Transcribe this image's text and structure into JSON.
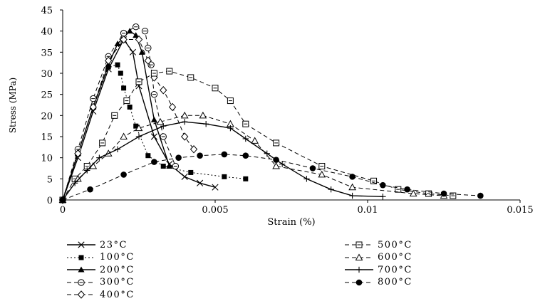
{
  "chart_data": {
    "type": "line",
    "title": "",
    "xlabel": "Strain (%)",
    "ylabel": "Stress (MPa)",
    "xlim": [
      0,
      0.015
    ],
    "ylim": [
      0,
      45
    ],
    "x_ticks": [
      "0",
      "0.005",
      "0.01",
      "0.015"
    ],
    "y_ticks": [
      "0",
      "5",
      "10",
      "15",
      "20",
      "25",
      "30",
      "35",
      "40",
      "45"
    ],
    "grid": false,
    "legend_position": "bottom",
    "series": [
      {
        "name": "23°C",
        "marker": "x",
        "line": "solid",
        "x": [
          0,
          0.0005,
          0.001,
          0.0015,
          0.002,
          0.0023,
          0.0025,
          0.003,
          0.0035,
          0.004,
          0.0045,
          0.005
        ],
        "y": [
          0,
          10,
          21,
          31,
          38,
          35,
          27,
          15,
          8.5,
          5.5,
          4,
          3
        ]
      },
      {
        "name": "100°C",
        "marker": "filled-square",
        "line": "dotted",
        "x": [
          0,
          0.0005,
          0.001,
          0.0015,
          0.0018,
          0.0019,
          0.002,
          0.0022,
          0.0024,
          0.0028,
          0.0033,
          0.0042,
          0.0053,
          0.006
        ],
        "y": [
          0,
          11,
          22,
          31.5,
          32,
          30,
          26.5,
          22,
          17.5,
          10.5,
          8,
          6.5,
          5.5,
          5
        ]
      },
      {
        "name": "200°C",
        "marker": "filled-triangle",
        "line": "solid",
        "x": [
          0,
          0.0005,
          0.001,
          0.0015,
          0.0018,
          0.0022,
          0.0024,
          0.0026,
          0.003,
          0.0035
        ],
        "y": [
          0,
          11,
          22,
          32,
          37,
          40,
          39,
          35,
          19,
          8
        ]
      },
      {
        "name": "300°C",
        "marker": "circle-dash",
        "line": "dashed",
        "x": [
          0,
          0.0005,
          0.001,
          0.0015,
          0.002,
          0.0024,
          0.0027,
          0.0028,
          0.0029,
          0.003,
          0.0033,
          0.0037
        ],
        "y": [
          0,
          12,
          24,
          34,
          39.5,
          41,
          40,
          36,
          32,
          25,
          15,
          8
        ]
      },
      {
        "name": "400°C",
        "marker": "diamond",
        "line": "dashed",
        "x": [
          0,
          0.0005,
          0.001,
          0.0015,
          0.002,
          0.0025,
          0.0028,
          0.003,
          0.0033,
          0.0036,
          0.004,
          0.0043
        ],
        "y": [
          0,
          11,
          22,
          33,
          38,
          38,
          33,
          29,
          26,
          22,
          15,
          12
        ]
      },
      {
        "name": "500°C",
        "marker": "square-dash",
        "line": "dashed",
        "x": [
          0,
          0.0004,
          0.0008,
          0.0013,
          0.0017,
          0.0021,
          0.0025,
          0.003,
          0.0035,
          0.0042,
          0.005,
          0.0055,
          0.006,
          0.007,
          0.0085,
          0.0102,
          0.011,
          0.012,
          0.0128
        ],
        "y": [
          0,
          5,
          8,
          13.5,
          20,
          23.5,
          28,
          30,
          30.5,
          29,
          26.5,
          23.5,
          18,
          13.5,
          8,
          4.5,
          2.5,
          1.5,
          1
        ]
      },
      {
        "name": "600°C",
        "marker": "triangle",
        "line": "dashed",
        "x": [
          0,
          0.0005,
          0.001,
          0.0015,
          0.002,
          0.0025,
          0.0032,
          0.004,
          0.0046,
          0.0055,
          0.0063,
          0.007,
          0.0085,
          0.0095,
          0.0115,
          0.0125
        ],
        "y": [
          0,
          5,
          8,
          11,
          15,
          17,
          18.5,
          20,
          20,
          18,
          14,
          8,
          6,
          3,
          1.5,
          1
        ]
      },
      {
        "name": "700°C",
        "marker": "plus",
        "line": "solid",
        "x": [
          0,
          0.0004,
          0.0008,
          0.0012,
          0.0018,
          0.0025,
          0.0033,
          0.004,
          0.0047,
          0.0055,
          0.006,
          0.0067,
          0.0072,
          0.008,
          0.0088,
          0.0095,
          0.0105
        ],
        "y": [
          0,
          4,
          7,
          10,
          12,
          15,
          17.5,
          18.5,
          18,
          17,
          14.5,
          11,
          8.5,
          5,
          2.5,
          1,
          0.8
        ]
      },
      {
        "name": "800°C",
        "marker": "filled-circle",
        "line": "dashed",
        "x": [
          0,
          0.0009,
          0.002,
          0.003,
          0.0038,
          0.0045,
          0.0053,
          0.006,
          0.007,
          0.0082,
          0.0095,
          0.0105,
          0.0113,
          0.0125,
          0.0137
        ],
        "y": [
          0,
          2.5,
          6,
          9,
          10,
          10.5,
          10.8,
          10.5,
          9.5,
          7.5,
          5.5,
          3.5,
          2.5,
          1.5,
          1
        ]
      }
    ]
  }
}
